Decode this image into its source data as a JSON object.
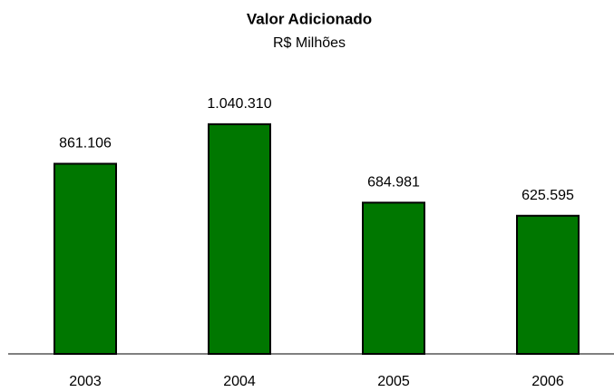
{
  "chart_data": {
    "type": "bar",
    "title": "Valor Adicionado",
    "subtitle": "R$ Milhões",
    "categories": [
      "2003",
      "2004",
      "2005",
      "2006"
    ],
    "values": [
      861106,
      1040310,
      684981,
      625595
    ],
    "value_labels": [
      "861.106",
      "1.040.310",
      "684.981",
      "625.595"
    ],
    "color": "#007700",
    "ylim": [
      0,
      1200000
    ]
  }
}
